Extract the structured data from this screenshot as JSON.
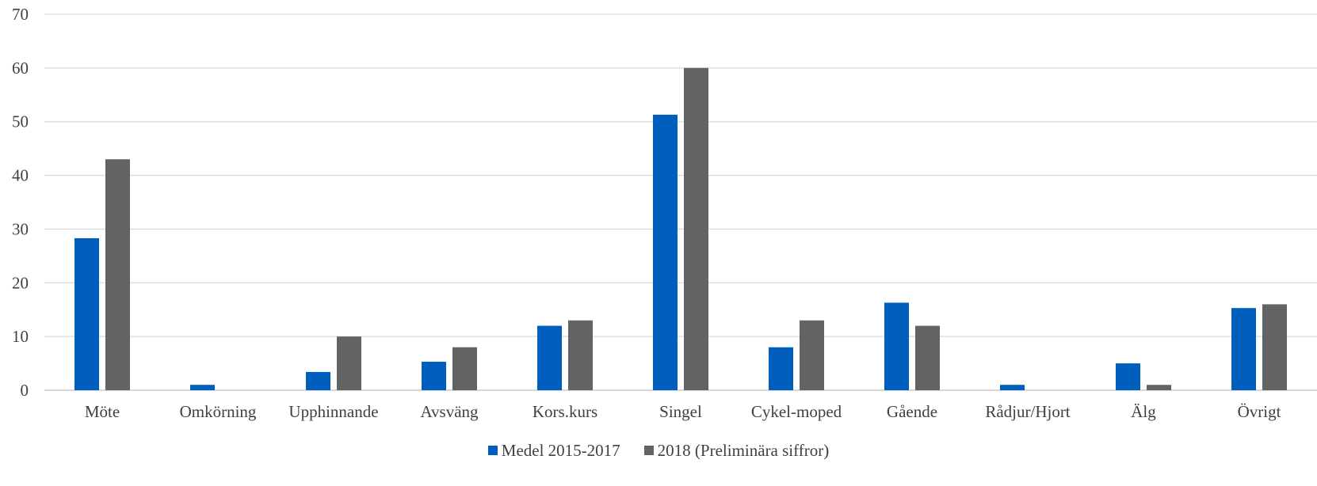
{
  "chart_data": {
    "type": "bar",
    "categories": [
      "Möte",
      "Omkörning",
      "Upphinnande",
      "Avsväng",
      "Kors.kurs",
      "Singel",
      "Cykel-moped",
      "Gående",
      "Rådjur/Hjort",
      "Älg",
      "Övrigt"
    ],
    "series": [
      {
        "name": "Medel 2015-2017",
        "color": "#005ebd",
        "values": [
          28.3,
          1,
          3.4,
          5.3,
          12,
          51.3,
          8,
          16.3,
          1,
          5,
          15.3
        ]
      },
      {
        "name": "2018 (Preliminära siffror)",
        "color": "#626365",
        "values": [
          43,
          0,
          10,
          8,
          13,
          60,
          13,
          12,
          0,
          1,
          16
        ]
      }
    ],
    "ylim": [
      0,
      70
    ],
    "yticks": [
      0,
      10,
      20,
      30,
      40,
      50,
      60,
      70
    ],
    "grid": true,
    "legend_position": "bottom"
  }
}
